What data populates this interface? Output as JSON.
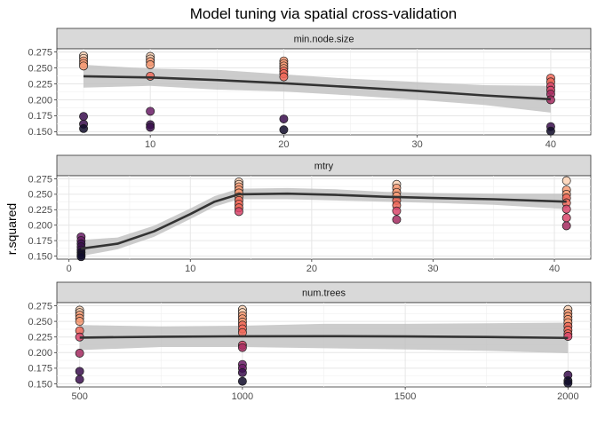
{
  "chart_data": {
    "type": "scatter",
    "title": "Model tuning via spatial cross-validation",
    "ylabel": "r.squared",
    "xlabel": "",
    "ylim": [
      0.145,
      0.28
    ],
    "y_ticks": [
      0.15,
      0.175,
      0.2,
      0.225,
      0.25,
      0.275
    ],
    "y_tick_labels": [
      "0.150",
      "0.175",
      "0.200",
      "0.225",
      "0.250",
      "0.275"
    ],
    "grid": true,
    "legend": "none",
    "smooth_line_color": "#333333",
    "ribbon_color": "#bfbfbf",
    "point_palette": [
      "#100c2a",
      "#3b0f4f",
      "#6b1d67",
      "#a52c60",
      "#d8456b",
      "#f16a5b",
      "#f79c77",
      "#fbd1b4"
    ],
    "facets": [
      {
        "strip": "min.node.size",
        "xlim": [
          3,
          43
        ],
        "x_ticks": [
          10,
          20,
          30,
          40
        ],
        "points": [
          {
            "x": 5,
            "y": 0.269
          },
          {
            "x": 5,
            "y": 0.265
          },
          {
            "x": 5,
            "y": 0.261
          },
          {
            "x": 5,
            "y": 0.257
          },
          {
            "x": 5,
            "y": 0.253
          },
          {
            "x": 5,
            "y": 0.174
          },
          {
            "x": 5,
            "y": 0.162
          },
          {
            "x": 5,
            "y": 0.155
          },
          {
            "x": 10,
            "y": 0.268
          },
          {
            "x": 10,
            "y": 0.264
          },
          {
            "x": 10,
            "y": 0.26
          },
          {
            "x": 10,
            "y": 0.255
          },
          {
            "x": 10,
            "y": 0.237
          },
          {
            "x": 10,
            "y": 0.182
          },
          {
            "x": 10,
            "y": 0.161
          },
          {
            "x": 10,
            "y": 0.157
          },
          {
            "x": 20,
            "y": 0.261
          },
          {
            "x": 20,
            "y": 0.257
          },
          {
            "x": 20,
            "y": 0.253
          },
          {
            "x": 20,
            "y": 0.249
          },
          {
            "x": 20,
            "y": 0.245
          },
          {
            "x": 20,
            "y": 0.241
          },
          {
            "x": 20,
            "y": 0.236
          },
          {
            "x": 20,
            "y": 0.17
          },
          {
            "x": 20,
            "y": 0.153
          },
          {
            "x": 40,
            "y": 0.234
          },
          {
            "x": 40,
            "y": 0.228
          },
          {
            "x": 40,
            "y": 0.221
          },
          {
            "x": 40,
            "y": 0.215
          },
          {
            "x": 40,
            "y": 0.209
          },
          {
            "x": 40,
            "y": 0.2
          },
          {
            "x": 40,
            "y": 0.158
          },
          {
            "x": 40,
            "y": 0.151
          }
        ],
        "smooth": [
          {
            "x": 5,
            "y": 0.237
          },
          {
            "x": 10,
            "y": 0.235
          },
          {
            "x": 15,
            "y": 0.231
          },
          {
            "x": 20,
            "y": 0.226
          },
          {
            "x": 25,
            "y": 0.22
          },
          {
            "x": 30,
            "y": 0.214
          },
          {
            "x": 35,
            "y": 0.207
          },
          {
            "x": 40,
            "y": 0.201
          }
        ],
        "ribbon": [
          {
            "x": 5,
            "lo": 0.219,
            "hi": 0.255
          },
          {
            "x": 10,
            "lo": 0.222,
            "hi": 0.249
          },
          {
            "x": 15,
            "lo": 0.216,
            "hi": 0.247
          },
          {
            "x": 20,
            "lo": 0.213,
            "hi": 0.24
          },
          {
            "x": 25,
            "lo": 0.207,
            "hi": 0.233
          },
          {
            "x": 30,
            "lo": 0.2,
            "hi": 0.228
          },
          {
            "x": 35,
            "lo": 0.192,
            "hi": 0.223
          },
          {
            "x": 40,
            "lo": 0.18,
            "hi": 0.222
          }
        ]
      },
      {
        "strip": "mtry",
        "xlim": [
          -1,
          43
        ],
        "x_ticks": [
          0,
          10,
          20,
          30,
          40
        ],
        "points": [
          {
            "x": 1,
            "y": 0.181
          },
          {
            "x": 1,
            "y": 0.175
          },
          {
            "x": 1,
            "y": 0.17
          },
          {
            "x": 1,
            "y": 0.165
          },
          {
            "x": 1,
            "y": 0.16
          },
          {
            "x": 1,
            "y": 0.156
          },
          {
            "x": 1,
            "y": 0.152
          },
          {
            "x": 1,
            "y": 0.149
          },
          {
            "x": 14,
            "y": 0.27
          },
          {
            "x": 14,
            "y": 0.266
          },
          {
            "x": 14,
            "y": 0.262
          },
          {
            "x": 14,
            "y": 0.257
          },
          {
            "x": 14,
            "y": 0.252
          },
          {
            "x": 14,
            "y": 0.246
          },
          {
            "x": 14,
            "y": 0.24
          },
          {
            "x": 14,
            "y": 0.234
          },
          {
            "x": 14,
            "y": 0.228
          },
          {
            "x": 14,
            "y": 0.222
          },
          {
            "x": 27,
            "y": 0.266
          },
          {
            "x": 27,
            "y": 0.26
          },
          {
            "x": 27,
            "y": 0.253
          },
          {
            "x": 27,
            "y": 0.247
          },
          {
            "x": 27,
            "y": 0.24
          },
          {
            "x": 27,
            "y": 0.232
          },
          {
            "x": 27,
            "y": 0.223
          },
          {
            "x": 27,
            "y": 0.209
          },
          {
            "x": 41,
            "y": 0.272
          },
          {
            "x": 41,
            "y": 0.257
          },
          {
            "x": 41,
            "y": 0.25
          },
          {
            "x": 41,
            "y": 0.244
          },
          {
            "x": 41,
            "y": 0.236
          },
          {
            "x": 41,
            "y": 0.226
          },
          {
            "x": 41,
            "y": 0.212
          },
          {
            "x": 41,
            "y": 0.199
          }
        ],
        "smooth": [
          {
            "x": 1,
            "y": 0.162
          },
          {
            "x": 4,
            "y": 0.17
          },
          {
            "x": 7,
            "y": 0.19
          },
          {
            "x": 10,
            "y": 0.218
          },
          {
            "x": 12,
            "y": 0.238
          },
          {
            "x": 14,
            "y": 0.25
          },
          {
            "x": 18,
            "y": 0.251
          },
          {
            "x": 22,
            "y": 0.249
          },
          {
            "x": 26,
            "y": 0.246
          },
          {
            "x": 30,
            "y": 0.244
          },
          {
            "x": 35,
            "y": 0.242
          },
          {
            "x": 41,
            "y": 0.238
          }
        ],
        "ribbon": [
          {
            "x": 1,
            "lo": 0.15,
            "hi": 0.176
          },
          {
            "x": 4,
            "lo": 0.161,
            "hi": 0.18
          },
          {
            "x": 7,
            "lo": 0.181,
            "hi": 0.199
          },
          {
            "x": 10,
            "lo": 0.21,
            "hi": 0.227
          },
          {
            "x": 12,
            "lo": 0.23,
            "hi": 0.247
          },
          {
            "x": 14,
            "lo": 0.242,
            "hi": 0.259
          },
          {
            "x": 18,
            "lo": 0.242,
            "hi": 0.26
          },
          {
            "x": 22,
            "lo": 0.24,
            "hi": 0.258
          },
          {
            "x": 26,
            "lo": 0.238,
            "hi": 0.254
          },
          {
            "x": 30,
            "lo": 0.236,
            "hi": 0.252
          },
          {
            "x": 35,
            "lo": 0.233,
            "hi": 0.251
          },
          {
            "x": 41,
            "lo": 0.226,
            "hi": 0.251
          }
        ]
      },
      {
        "strip": "num.trees",
        "xlim": [
          430,
          2070
        ],
        "x_ticks": [
          500,
          1000,
          1500,
          2000
        ],
        "points": [
          {
            "x": 500,
            "y": 0.268
          },
          {
            "x": 500,
            "y": 0.264
          },
          {
            "x": 500,
            "y": 0.26
          },
          {
            "x": 500,
            "y": 0.255
          },
          {
            "x": 500,
            "y": 0.25
          },
          {
            "x": 500,
            "y": 0.235
          },
          {
            "x": 500,
            "y": 0.225
          },
          {
            "x": 500,
            "y": 0.199
          },
          {
            "x": 500,
            "y": 0.17
          },
          {
            "x": 500,
            "y": 0.157
          },
          {
            "x": 1000,
            "y": 0.269
          },
          {
            "x": 1000,
            "y": 0.264
          },
          {
            "x": 1000,
            "y": 0.259
          },
          {
            "x": 1000,
            "y": 0.254
          },
          {
            "x": 1000,
            "y": 0.249
          },
          {
            "x": 1000,
            "y": 0.244
          },
          {
            "x": 1000,
            "y": 0.238
          },
          {
            "x": 1000,
            "y": 0.232
          },
          {
            "x": 1000,
            "y": 0.212
          },
          {
            "x": 1000,
            "y": 0.208
          },
          {
            "x": 1000,
            "y": 0.181
          },
          {
            "x": 1000,
            "y": 0.175
          },
          {
            "x": 1000,
            "y": 0.168
          },
          {
            "x": 1000,
            "y": 0.154
          },
          {
            "x": 2000,
            "y": 0.269
          },
          {
            "x": 2000,
            "y": 0.263
          },
          {
            "x": 2000,
            "y": 0.258
          },
          {
            "x": 2000,
            "y": 0.253
          },
          {
            "x": 2000,
            "y": 0.248
          },
          {
            "x": 2000,
            "y": 0.242
          },
          {
            "x": 2000,
            "y": 0.236
          },
          {
            "x": 2000,
            "y": 0.23
          },
          {
            "x": 2000,
            "y": 0.226
          },
          {
            "x": 2000,
            "y": 0.164
          },
          {
            "x": 2000,
            "y": 0.155
          },
          {
            "x": 2000,
            "y": 0.151
          }
        ],
        "smooth": [
          {
            "x": 500,
            "y": 0.224
          },
          {
            "x": 750,
            "y": 0.2255
          },
          {
            "x": 1000,
            "y": 0.2262
          },
          {
            "x": 1250,
            "y": 0.2263
          },
          {
            "x": 1500,
            "y": 0.2258
          },
          {
            "x": 1750,
            "y": 0.225
          },
          {
            "x": 2000,
            "y": 0.2235
          }
        ],
        "ribbon": [
          {
            "x": 500,
            "lo": 0.204,
            "hi": 0.244
          },
          {
            "x": 750,
            "lo": 0.209,
            "hi": 0.242
          },
          {
            "x": 1000,
            "lo": 0.209,
            "hi": 0.243
          },
          {
            "x": 1250,
            "lo": 0.207,
            "hi": 0.246
          },
          {
            "x": 1500,
            "lo": 0.205,
            "hi": 0.246
          },
          {
            "x": 1750,
            "lo": 0.203,
            "hi": 0.247
          },
          {
            "x": 2000,
            "lo": 0.199,
            "hi": 0.248
          }
        ]
      }
    ]
  }
}
